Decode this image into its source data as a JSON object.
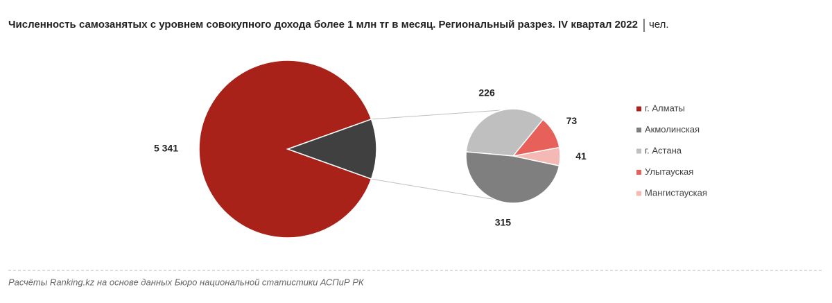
{
  "chart_data": {
    "type": "pie-of-pie",
    "title": "Численность самозанятых с уровнем совокупного дохода более 1 млн тг в месяц. Региональный разрез. IV квартал 2022",
    "unit": "чел.",
    "categories": [
      "г. Алматы",
      "Акмолинская",
      "г. Астана",
      "Улытауская",
      "Мангистауская"
    ],
    "values": [
      5341,
      315,
      226,
      73,
      41
    ],
    "value_labels": [
      "5 341",
      "315",
      "226",
      "73",
      "41"
    ],
    "colors": [
      "#a8221a",
      "#7f7f7f",
      "#bfbfbf",
      "#e8605a",
      "#f4b8b5"
    ],
    "other_color": "#404040",
    "legend": "right",
    "source": "Расчёты Ranking.kz на основе данных Бюро национальной статистики АСПиР РК"
  }
}
